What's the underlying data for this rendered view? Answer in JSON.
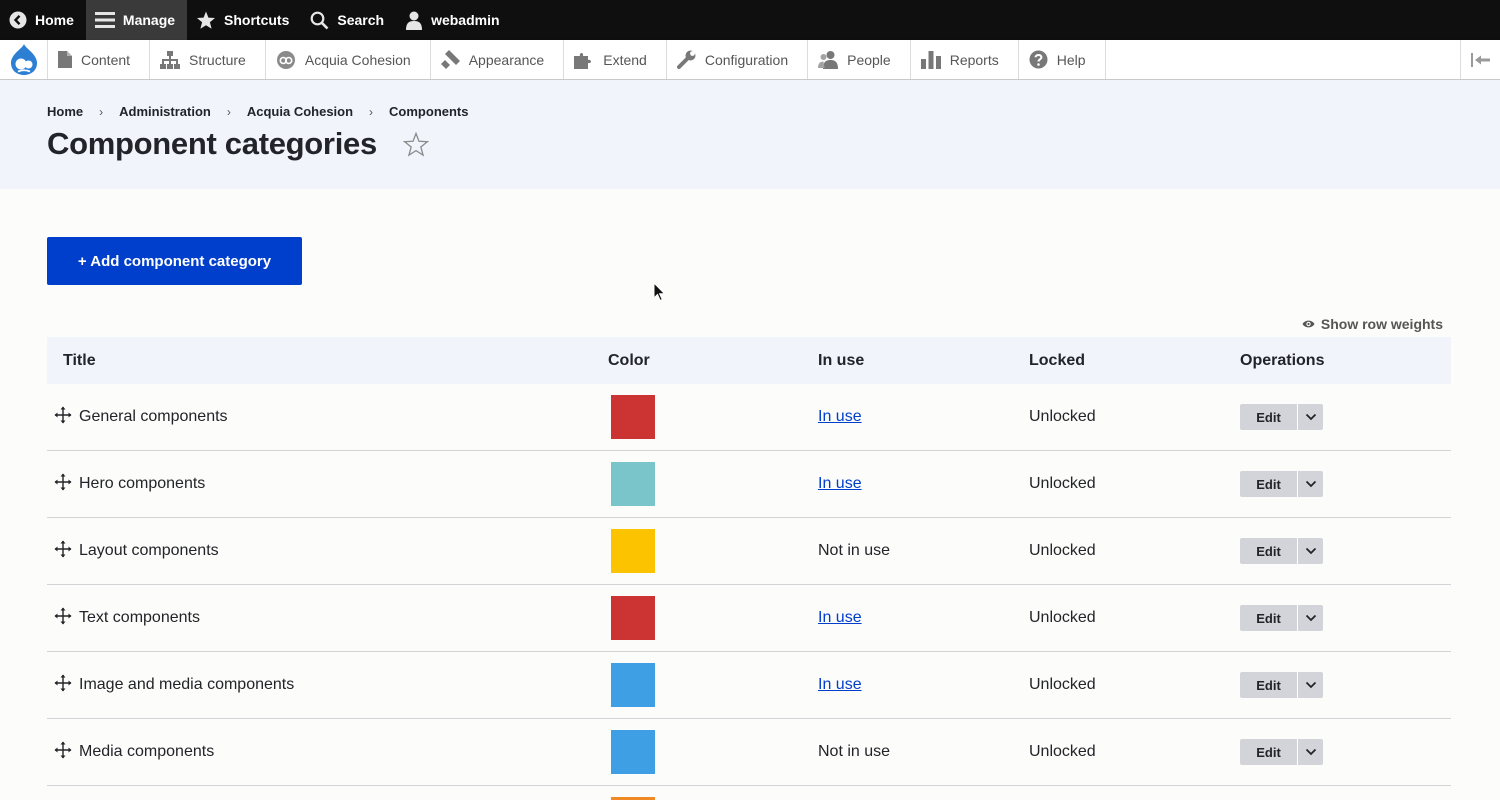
{
  "toolbar": {
    "home": "Home",
    "manage": "Manage",
    "shortcuts": "Shortcuts",
    "search": "Search",
    "user": "webadmin"
  },
  "tray": {
    "items": [
      {
        "label": "Content",
        "icon": "document-icon"
      },
      {
        "label": "Structure",
        "icon": "sitemap-icon"
      },
      {
        "label": "Acquia Cohesion",
        "icon": "cohesion-icon"
      },
      {
        "label": "Appearance",
        "icon": "paintbrush-icon"
      },
      {
        "label": "Extend",
        "icon": "puzzle-icon"
      },
      {
        "label": "Configuration",
        "icon": "wrench-icon"
      },
      {
        "label": "People",
        "icon": "people-icon"
      },
      {
        "label": "Reports",
        "icon": "bar-chart-icon"
      },
      {
        "label": "Help",
        "icon": "help-icon"
      }
    ]
  },
  "breadcrumb": [
    "Home",
    "Administration",
    "Acquia Cohesion",
    "Components"
  ],
  "page": {
    "title": "Component categories",
    "add_button": "+ Add component category",
    "show_row_weights": "Show row weights"
  },
  "table": {
    "headers": {
      "title": "Title",
      "color": "Color",
      "in_use": "In use",
      "locked": "Locked",
      "operations": "Operations"
    },
    "rows": [
      {
        "title": "General components",
        "color": "#cc3333",
        "in_use": "In use",
        "in_use_link": true,
        "locked": "Unlocked",
        "edit": "Edit"
      },
      {
        "title": "Hero components",
        "color": "#7ac5c9",
        "in_use": "In use",
        "in_use_link": true,
        "locked": "Unlocked",
        "edit": "Edit"
      },
      {
        "title": "Layout components",
        "color": "#fcc400",
        "in_use": "Not in use",
        "in_use_link": false,
        "locked": "Unlocked",
        "edit": "Edit"
      },
      {
        "title": "Text components",
        "color": "#cc3333",
        "in_use": "In use",
        "in_use_link": true,
        "locked": "Unlocked",
        "edit": "Edit"
      },
      {
        "title": "Image and media components",
        "color": "#3f9fe5",
        "in_use": "In use",
        "in_use_link": true,
        "locked": "Unlocked",
        "edit": "Edit"
      },
      {
        "title": "Media components",
        "color": "#3f9fe5",
        "in_use": "Not in use",
        "in_use_link": false,
        "locked": "Unlocked",
        "edit": "Edit"
      }
    ]
  },
  "colors": {
    "accent": "#003ecc",
    "header_bg": "#f2f4fc",
    "next_row_swatch": "#f08a24"
  }
}
